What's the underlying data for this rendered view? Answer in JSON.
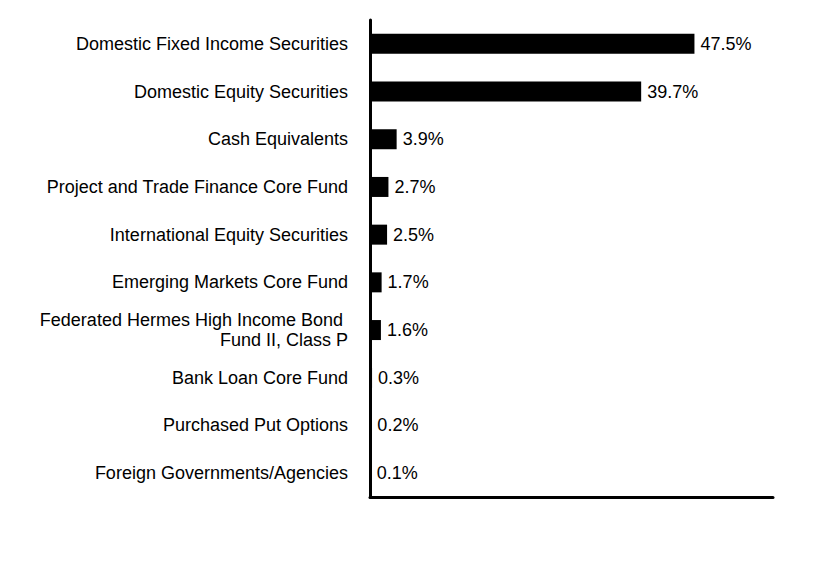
{
  "chart_data": {
    "type": "bar",
    "orientation": "horizontal",
    "categories": [
      "Domestic Fixed Income Securities",
      "Domestic Equity Securities",
      "Cash Equivalents",
      "Project and Trade Finance Core Fund",
      "International Equity Securities",
      "Emerging Markets Core Fund",
      "Federated Hermes High Income Bond Fund II, Class P",
      "Bank Loan Core Fund",
      "Purchased Put Options",
      "Foreign Governments/Agencies"
    ],
    "values": [
      47.5,
      39.7,
      3.9,
      2.7,
      2.5,
      1.7,
      1.6,
      0.3,
      0.2,
      0.1
    ],
    "value_labels": [
      "47.5%",
      "39.7%",
      "3.9%",
      "2.7%",
      "2.5%",
      "1.7%",
      "1.6%",
      "0.3%",
      "0.2%",
      "0.1%"
    ],
    "color": "#000000",
    "xlim": [
      0,
      59
    ],
    "data_labels": true,
    "tick_labels": "y",
    "grid": false
  }
}
